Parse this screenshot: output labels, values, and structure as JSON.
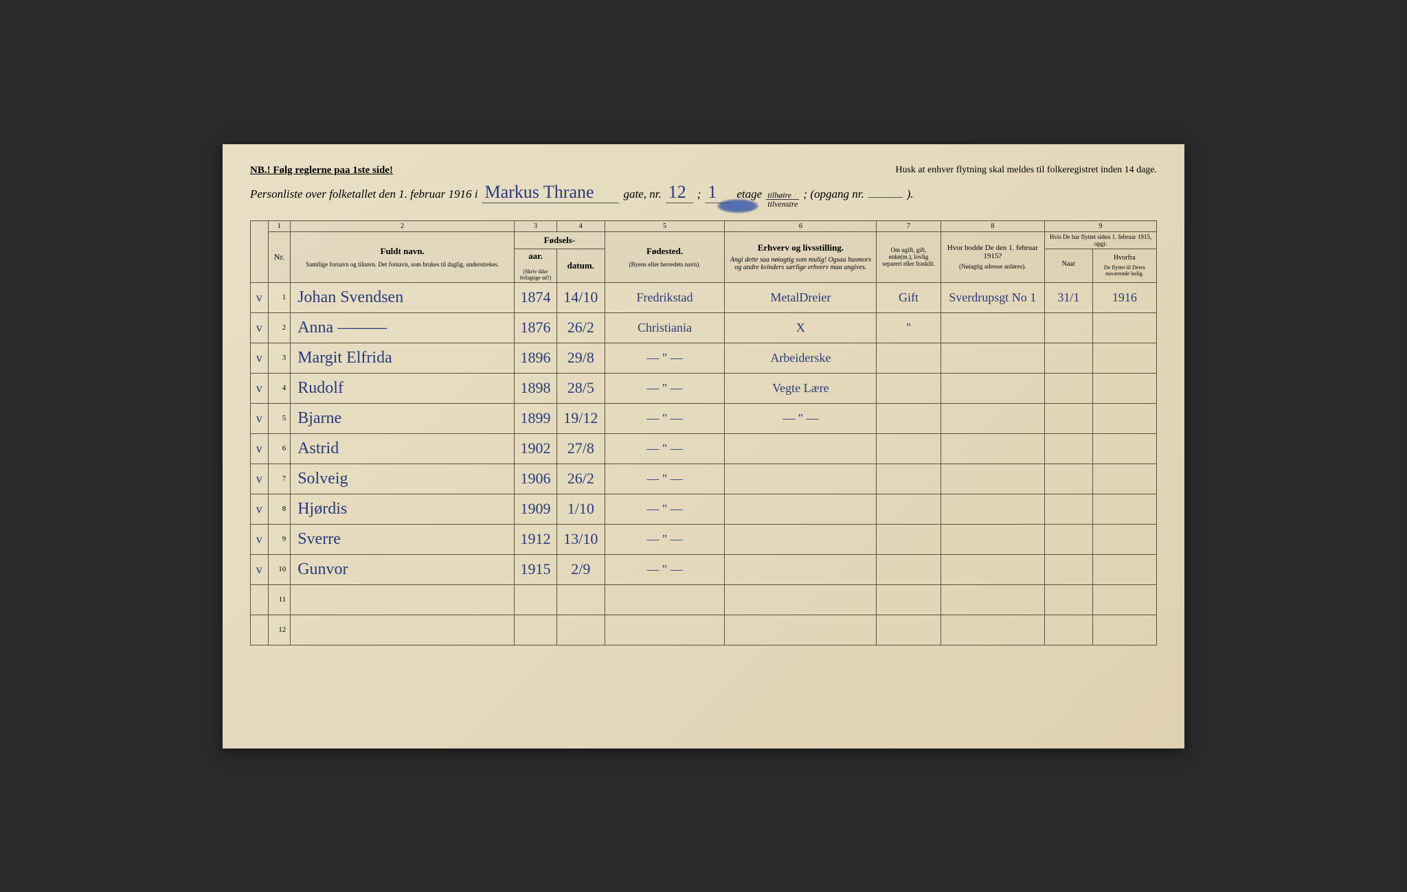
{
  "header": {
    "nb_left": "NB.! Følg reglerne paa 1ste side!",
    "nb_right": "Husk at enhver flytning skal meldes til folkeregistret inden 14 dage.",
    "line_prefix": "Personliste over folketallet den 1. februar 1916 i",
    "street": "Markus Thrane",
    "gate": "gate, nr.",
    "house_nr": "12",
    "semicolon": ";",
    "floor": "1",
    "etage": "etage",
    "frac_top": "tilhøire",
    "frac_bot": "tilvenstre",
    "opgang": "; (opgang nr.",
    "opgang_end": ")."
  },
  "columns": {
    "c1": "1",
    "c2": "2",
    "c3": "3",
    "c4": "4",
    "c5": "5",
    "c6": "6",
    "c7": "7",
    "c8": "8",
    "c9": "9",
    "nr": "Nr.",
    "fuldt_navn": "Fuldt navn.",
    "fuldt_sub": "Samtlige fornavn og tilnavn. Det fornavn, som brukes til daglig, understrekes.",
    "fodsels": "Fødsels-",
    "aar": "aar.",
    "datum": "datum.",
    "fodsels_sub": "(Skriv ikke feilagtige tal!)",
    "fodested": "Fødested.",
    "fodested_sub": "(Byens eller herredets navn).",
    "erhverv": "Erhverv og livsstilling.",
    "erhverv_sub": "Angi dette saa nøiagtig som mulig! Ogsaa husmors og andre kvinders særlige erhverv maa angives.",
    "marital": "Om ugift, gift, enke(m.), lovlig separert eller fraskilt.",
    "prev_addr": "Hvor bodde De den 1. februar 1915?",
    "prev_addr_sub": "(Nøiagtig adresse anføres).",
    "moved": "Hvis De har flyttet siden 1. februar 1915, opgi:",
    "naar": "Naar",
    "hvorfra": "Hvorfra",
    "moved_sub": "De flyttet til Deres nuværende bolig."
  },
  "rows": [
    {
      "n": "1",
      "chk": "v",
      "name": "Johan Svendsen",
      "year": "1874",
      "date": "14/10",
      "birthplace": "Fredrikstad",
      "occ": "MetalDreier",
      "marital": "Gift",
      "prev": "Sverdrupsgt No 1",
      "when": "31/1",
      "where": "1916"
    },
    {
      "n": "2",
      "chk": "v",
      "name": "Anna ———",
      "year": "1876",
      "date": "26/2",
      "birthplace": "Christiania",
      "occ": "X",
      "marital": "\"",
      "prev": "",
      "when": "",
      "where": ""
    },
    {
      "n": "3",
      "chk": "v",
      "name": "Margit Elfrida",
      "year": "1896",
      "date": "29/8",
      "birthplace": "— \" —",
      "occ": "Arbeiderske",
      "marital": "",
      "prev": "",
      "when": "",
      "where": ""
    },
    {
      "n": "4",
      "chk": "v",
      "name": "Rudolf",
      "year": "1898",
      "date": "28/5",
      "birthplace": "— \" —",
      "occ": "Vegte Lære",
      "marital": "",
      "prev": "",
      "when": "",
      "where": ""
    },
    {
      "n": "5",
      "chk": "v",
      "name": "Bjarne",
      "year": "1899",
      "date": "19/12",
      "birthplace": "— \" —",
      "occ": "— \" —",
      "marital": "",
      "prev": "",
      "when": "",
      "where": ""
    },
    {
      "n": "6",
      "chk": "v",
      "name": "Astrid",
      "year": "1902",
      "date": "27/8",
      "birthplace": "— \" —",
      "occ": "",
      "marital": "",
      "prev": "",
      "when": "",
      "where": ""
    },
    {
      "n": "7",
      "chk": "v",
      "name": "Solveig",
      "year": "1906",
      "date": "26/2",
      "birthplace": "— \" —",
      "occ": "",
      "marital": "",
      "prev": "",
      "when": "",
      "where": ""
    },
    {
      "n": "8",
      "chk": "v",
      "name": "Hjørdis",
      "year": "1909",
      "date": "1/10",
      "birthplace": "— \" —",
      "occ": "",
      "marital": "",
      "prev": "",
      "when": "",
      "where": ""
    },
    {
      "n": "9",
      "chk": "v",
      "name": "Sverre",
      "year": "1912",
      "date": "13/10",
      "birthplace": "— \" —",
      "occ": "",
      "marital": "",
      "prev": "",
      "when": "",
      "where": ""
    },
    {
      "n": "10",
      "chk": "v",
      "name": "Gunvor",
      "year": "1915",
      "date": "2/9",
      "birthplace": "— \" —",
      "occ": "",
      "marital": "",
      "prev": "",
      "when": "",
      "where": ""
    },
    {
      "n": "11",
      "chk": "",
      "name": "",
      "year": "",
      "date": "",
      "birthplace": "",
      "occ": "",
      "marital": "",
      "prev": "",
      "when": "",
      "where": ""
    },
    {
      "n": "12",
      "chk": "",
      "name": "",
      "year": "",
      "date": "",
      "birthplace": "",
      "occ": "",
      "marital": "",
      "prev": "",
      "when": "",
      "where": ""
    }
  ]
}
